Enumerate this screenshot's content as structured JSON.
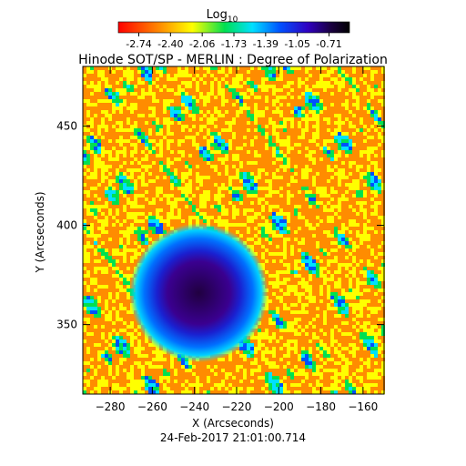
{
  "chart_data": {
    "type": "heatmap",
    "title": "Hinode SOT/SP - MERLIN : Degree of Polarization",
    "xlabel": "X (Arcseconds)",
    "ylabel": "Y (Arcseconds)",
    "xlim": [
      -293,
      -150
    ],
    "ylim": [
      315,
      480
    ],
    "xticks": [
      -280,
      -260,
      -240,
      -220,
      -200,
      -180,
      -160
    ],
    "yticks": [
      350,
      400,
      450
    ],
    "colorbar": {
      "label_base": "Log",
      "label_sub": "10",
      "ticks": [
        "-2.74",
        "-2.40",
        "-2.06",
        "-1.73",
        "-1.39",
        "-1.05",
        "-0.71"
      ],
      "colormap": "rainbow (red → orange → yellow → green → cyan → blue → violet → black)",
      "colors": [
        "#ff0000",
        "#ff8c00",
        "#ffff00",
        "#00e050",
        "#00e0ff",
        "#0050ff",
        "#3000c0",
        "#1a0040",
        "#000000"
      ]
    },
    "features": {
      "sunspot_center": [
        -238,
        366
      ],
      "sunspot_umbra_radius": 9,
      "sunspot_penumbra_radius": 15,
      "background_value": -2.7,
      "umbra_value": -0.85
    },
    "footer": "24-Feb-2017 21:01:00.714"
  }
}
